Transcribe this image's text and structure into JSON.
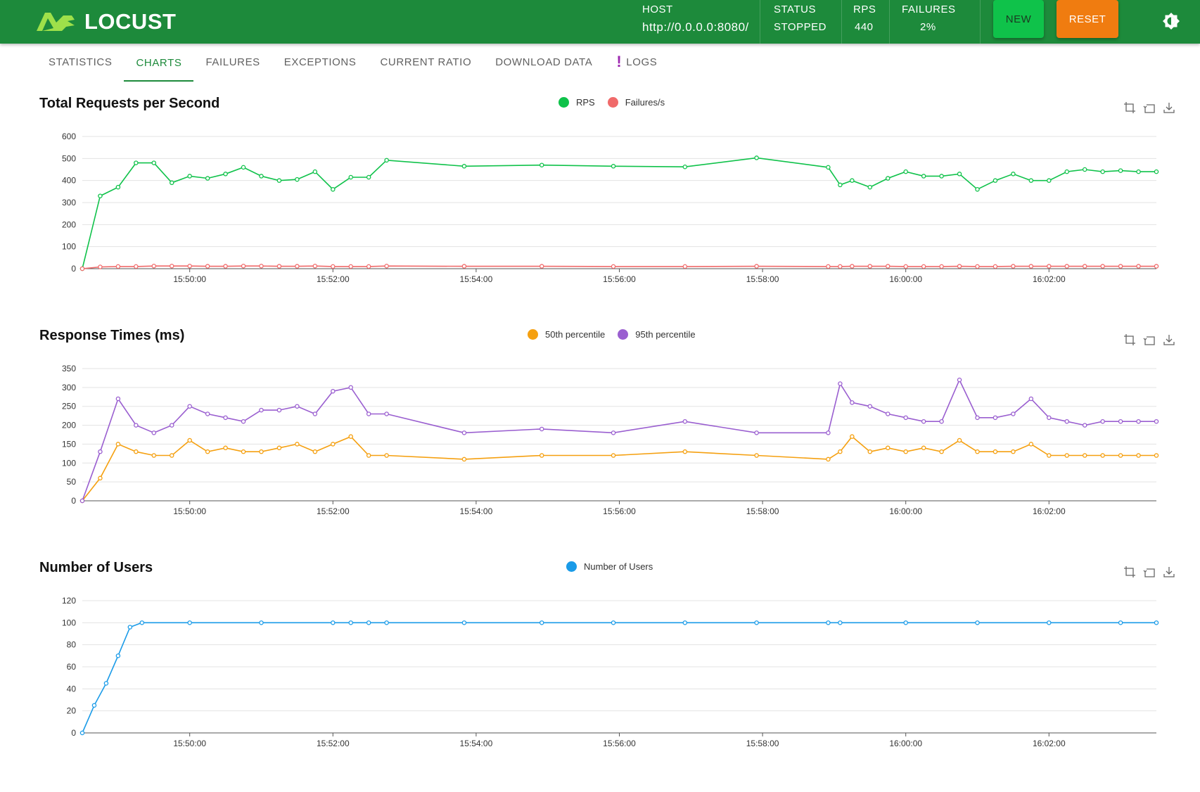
{
  "app": {
    "brand": "LOCUST",
    "colors": {
      "header": "#1d8a3b",
      "new_button": "#0fc24a",
      "reset_button": "#f07c10",
      "active_tab": "#1d8a3b"
    }
  },
  "header": {
    "host_label": "HOST",
    "host_value": "http://0.0.0.0:8080/",
    "status_label": "STATUS",
    "status_value": "STOPPED",
    "rps_label": "RPS",
    "rps_value": "440",
    "failures_label": "FAILURES",
    "failures_value": "2%",
    "new_label": "NEW",
    "reset_label": "RESET",
    "theme_icon": "brightness-icon"
  },
  "tabs": [
    {
      "label": "STATISTICS",
      "active": false
    },
    {
      "label": "CHARTS",
      "active": true
    },
    {
      "label": "FAILURES",
      "active": false
    },
    {
      "label": "EXCEPTIONS",
      "active": false
    },
    {
      "label": "CURRENT RATIO",
      "active": false
    },
    {
      "label": "DOWNLOAD DATA",
      "active": false
    },
    {
      "label": "LOGS",
      "active": false,
      "alert": "!"
    }
  ],
  "chart_data": [
    {
      "type": "line",
      "title": "Total Requests per Second",
      "x": [
        "15:48:30",
        "15:48:45",
        "15:49:00",
        "15:49:15",
        "15:49:30",
        "15:49:45",
        "15:50:00",
        "15:50:15",
        "15:50:30",
        "15:50:45",
        "15:51:00",
        "15:51:15",
        "15:51:30",
        "15:51:45",
        "15:52:00",
        "15:52:15",
        "15:52:30",
        "15:52:45",
        "15:53:50",
        "15:54:55",
        "15:55:55",
        "15:56:55",
        "15:57:55",
        "15:58:55",
        "15:59:05",
        "15:59:15",
        "15:59:30",
        "15:59:45",
        "16:00:00",
        "16:00:15",
        "16:00:30",
        "16:00:45",
        "16:01:00",
        "16:01:15",
        "16:01:30",
        "16:01:45",
        "16:02:00",
        "16:02:15",
        "16:02:30",
        "16:02:45",
        "16:03:00",
        "16:03:15",
        "16:03:30"
      ],
      "series": [
        {
          "name": "RPS",
          "color": "#0fc24a",
          "values": [
            0,
            330,
            370,
            480,
            480,
            390,
            420,
            410,
            430,
            460,
            420,
            400,
            405,
            440,
            360,
            415,
            415,
            492,
            465,
            470,
            465,
            462,
            503,
            460,
            380,
            400,
            370,
            410,
            440,
            420,
            420,
            430,
            360,
            400,
            430,
            400,
            400,
            440,
            450,
            440,
            445,
            440,
            440
          ]
        },
        {
          "name": "Failures/s",
          "color": "#f06a6a",
          "values": [
            0,
            8,
            10,
            10,
            12,
            12,
            12,
            11,
            11,
            12,
            12,
            11,
            11,
            12,
            10,
            10,
            10,
            12,
            11,
            11,
            10,
            10,
            11,
            10,
            10,
            11,
            11,
            11,
            10,
            10,
            10,
            11,
            10,
            10,
            11,
            11,
            11,
            11,
            11,
            11,
            11,
            11,
            11
          ]
        }
      ],
      "ylim": [
        0,
        600
      ],
      "yticks": [
        0,
        100,
        200,
        300,
        400,
        500,
        600
      ],
      "xticks": [
        "15:50:00",
        "15:52:00",
        "15:54:00",
        "15:56:00",
        "15:58:00",
        "16:00:00",
        "16:02:00"
      ]
    },
    {
      "type": "line",
      "title": "Response Times (ms)",
      "x": [
        "15:48:30",
        "15:48:45",
        "15:49:00",
        "15:49:15",
        "15:49:30",
        "15:49:45",
        "15:50:00",
        "15:50:15",
        "15:50:30",
        "15:50:45",
        "15:51:00",
        "15:51:15",
        "15:51:30",
        "15:51:45",
        "15:52:00",
        "15:52:15",
        "15:52:30",
        "15:52:45",
        "15:53:50",
        "15:54:55",
        "15:55:55",
        "15:56:55",
        "15:57:55",
        "15:58:55",
        "15:59:05",
        "15:59:15",
        "15:59:30",
        "15:59:45",
        "16:00:00",
        "16:00:15",
        "16:00:30",
        "16:00:45",
        "16:01:00",
        "16:01:15",
        "16:01:30",
        "16:01:45",
        "16:02:00",
        "16:02:15",
        "16:02:30",
        "16:02:45",
        "16:03:00",
        "16:03:15",
        "16:03:30"
      ],
      "series": [
        {
          "name": "50th percentile",
          "color": "#f5a010",
          "values": [
            0,
            60,
            150,
            130,
            120,
            120,
            160,
            130,
            140,
            130,
            130,
            140,
            150,
            130,
            150,
            170,
            120,
            120,
            110,
            120,
            120,
            130,
            120,
            110,
            130,
            170,
            130,
            140,
            130,
            140,
            130,
            160,
            130,
            130,
            130,
            150,
            120,
            120,
            120,
            120,
            120,
            120,
            120
          ]
        },
        {
          "name": "95th percentile",
          "color": "#9a5fd0",
          "values": [
            0,
            130,
            270,
            200,
            180,
            200,
            250,
            230,
            220,
            210,
            240,
            240,
            250,
            230,
            290,
            300,
            230,
            230,
            180,
            190,
            180,
            210,
            180,
            180,
            310,
            260,
            250,
            230,
            220,
            210,
            210,
            320,
            220,
            220,
            230,
            270,
            220,
            210,
            200,
            210,
            210,
            210,
            210
          ]
        }
      ],
      "ylim": [
        0,
        350
      ],
      "yticks": [
        0,
        50,
        100,
        150,
        200,
        250,
        300,
        350
      ],
      "xticks": [
        "15:50:00",
        "15:52:00",
        "15:54:00",
        "15:56:00",
        "15:58:00",
        "16:00:00",
        "16:02:00"
      ]
    },
    {
      "type": "line",
      "title": "Number of Users",
      "x": [
        "15:48:30",
        "15:48:40",
        "15:48:50",
        "15:49:00",
        "15:49:10",
        "15:49:20",
        "15:50:00",
        "15:51:00",
        "15:52:00",
        "15:52:15",
        "15:52:30",
        "15:52:45",
        "15:53:50",
        "15:54:55",
        "15:55:55",
        "15:56:55",
        "15:57:55",
        "15:58:55",
        "15:59:05",
        "16:00:00",
        "16:01:00",
        "16:02:00",
        "16:03:00",
        "16:03:30"
      ],
      "series": [
        {
          "name": "Number of Users",
          "color": "#1a9be8",
          "values": [
            0,
            25,
            45,
            70,
            96,
            100,
            100,
            100,
            100,
            100,
            100,
            100,
            100,
            100,
            100,
            100,
            100,
            100,
            100,
            100,
            100,
            100,
            100,
            100
          ]
        }
      ],
      "ylim": [
        0,
        120
      ],
      "yticks": [
        0,
        20,
        40,
        60,
        80,
        100,
        120
      ],
      "xticks": [
        "15:50:00",
        "15:52:00",
        "15:54:00",
        "15:56:00",
        "15:58:00",
        "16:00:00",
        "16:02:00"
      ]
    }
  ]
}
